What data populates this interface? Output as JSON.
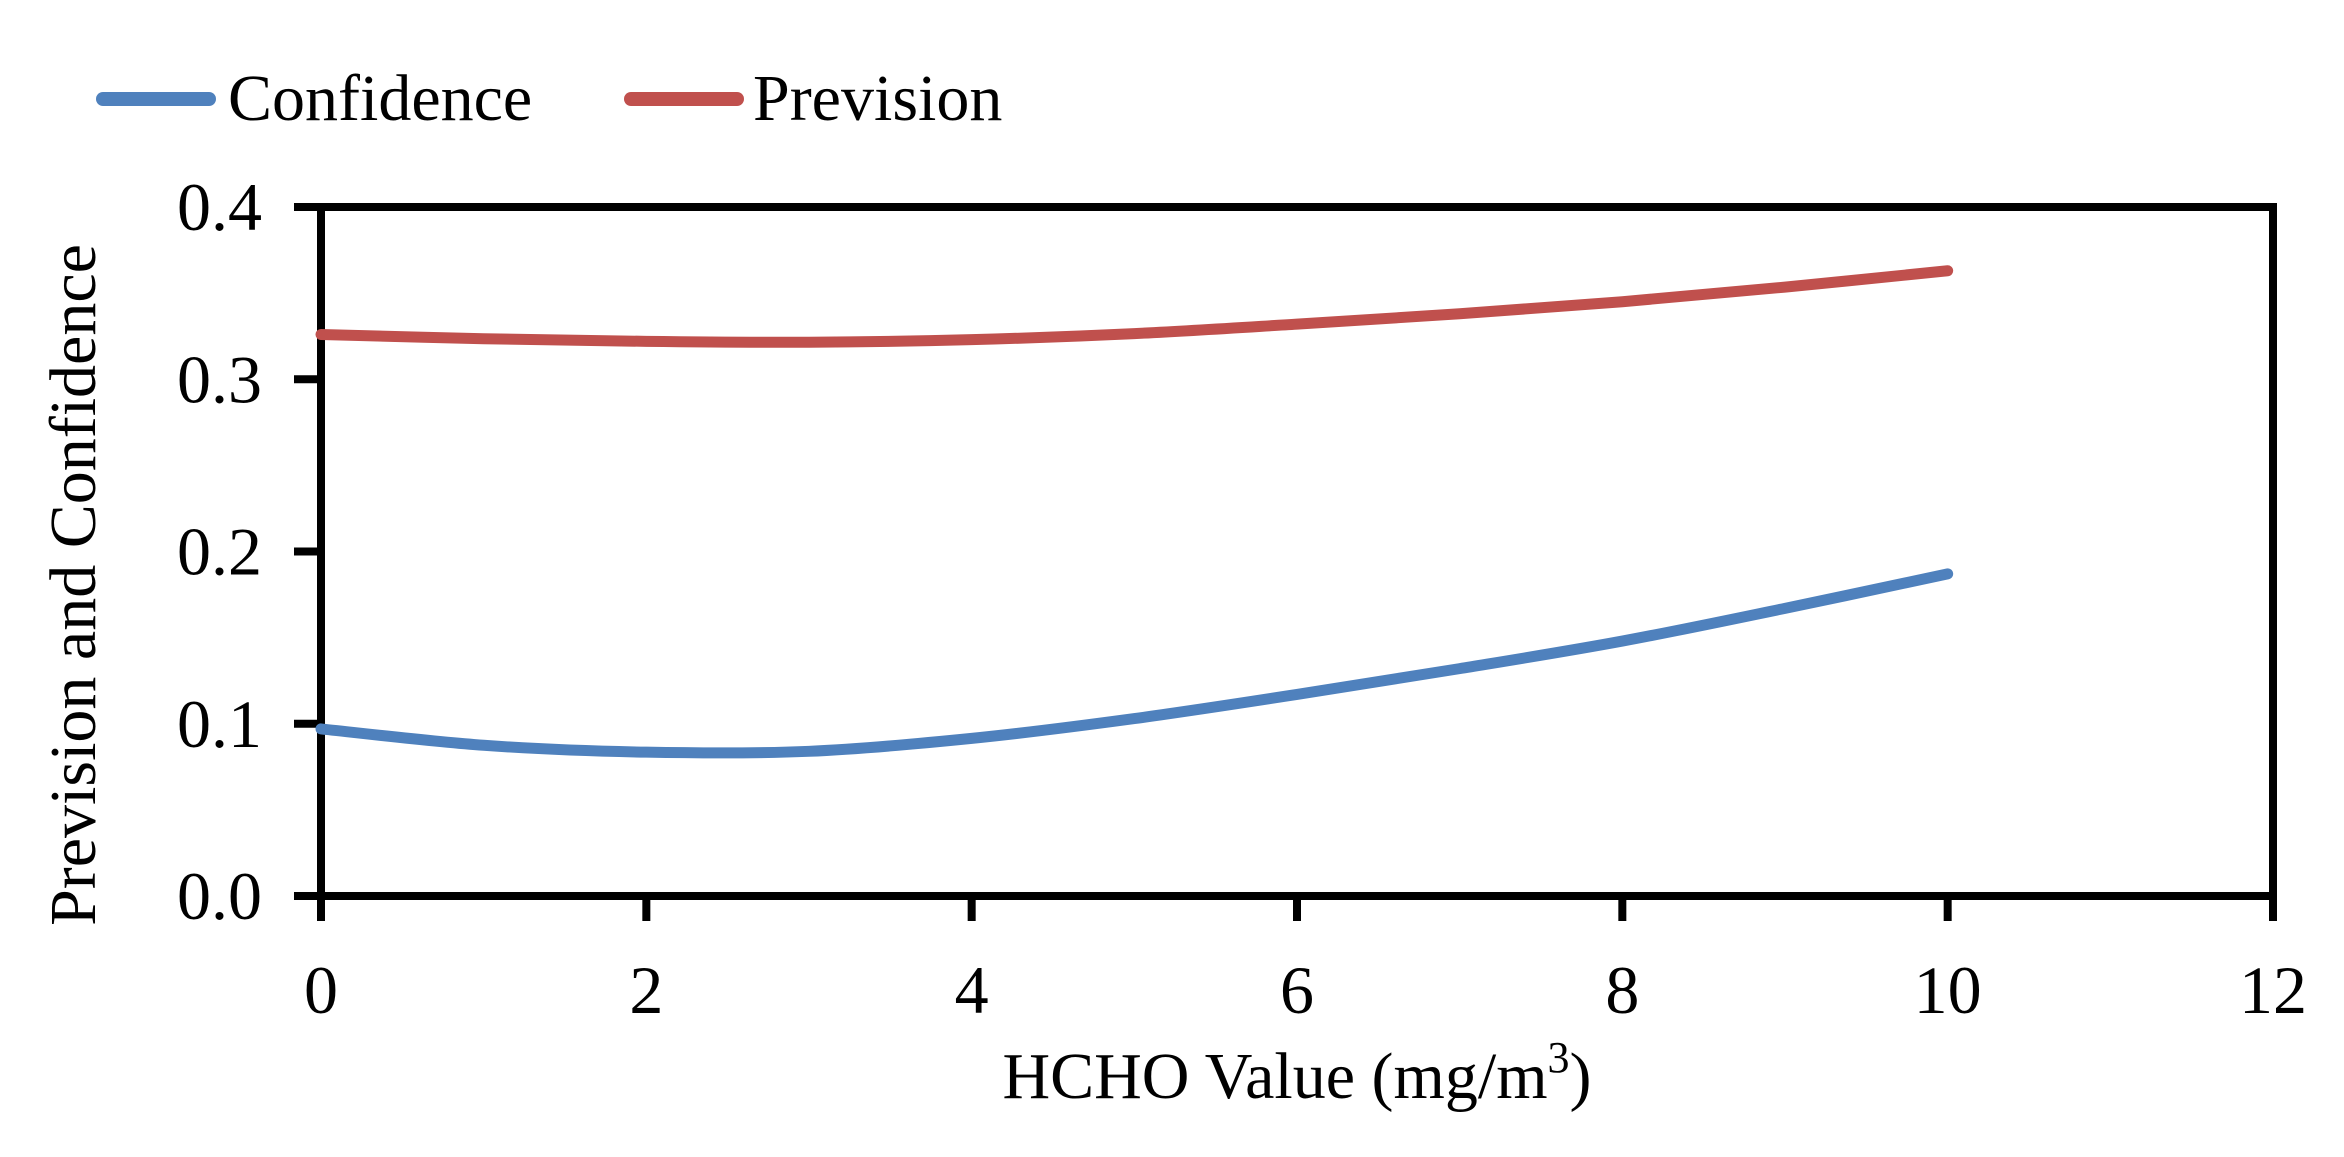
{
  "figure": {
    "background": "#ffffff",
    "text_color": "#000000",
    "axis_color": "#000000"
  },
  "chart_data": {
    "type": "line",
    "title": "",
    "xlabel": "HCHO Value (mg/m³)",
    "xlabel_parts": [
      "HCHO Value (mg/m",
      "3",
      ")"
    ],
    "ylabel": "Prevision and Confidence",
    "xlim": [
      0,
      12
    ],
    "ylim": [
      0.0,
      0.4
    ],
    "xticks": [
      0,
      2,
      4,
      6,
      8,
      10,
      12
    ],
    "xtick_labels": [
      "0",
      "2",
      "4",
      "6",
      "8",
      "10",
      "12"
    ],
    "yticks": [
      0.0,
      0.1,
      0.2,
      0.3,
      0.4
    ],
    "ytick_labels": [
      "0.0",
      "0.1",
      "0.2",
      "0.3",
      "0.4"
    ],
    "grid": false,
    "legend_position": "top-left",
    "x": [
      0,
      1,
      2,
      3,
      4,
      5,
      6,
      7,
      8,
      9,
      10
    ],
    "series": [
      {
        "name": "Confidence",
        "color": "#4F81BD",
        "values": [
          0.097,
          0.0875,
          0.0835,
          0.084,
          0.0915,
          0.103,
          0.117,
          0.132,
          0.148,
          0.167,
          0.187
        ]
      },
      {
        "name": "Prevision",
        "color": "#C0504D",
        "values": [
          0.326,
          0.3235,
          0.322,
          0.3215,
          0.323,
          0.3265,
          0.332,
          0.338,
          0.345,
          0.3535,
          0.363
        ]
      }
    ]
  }
}
